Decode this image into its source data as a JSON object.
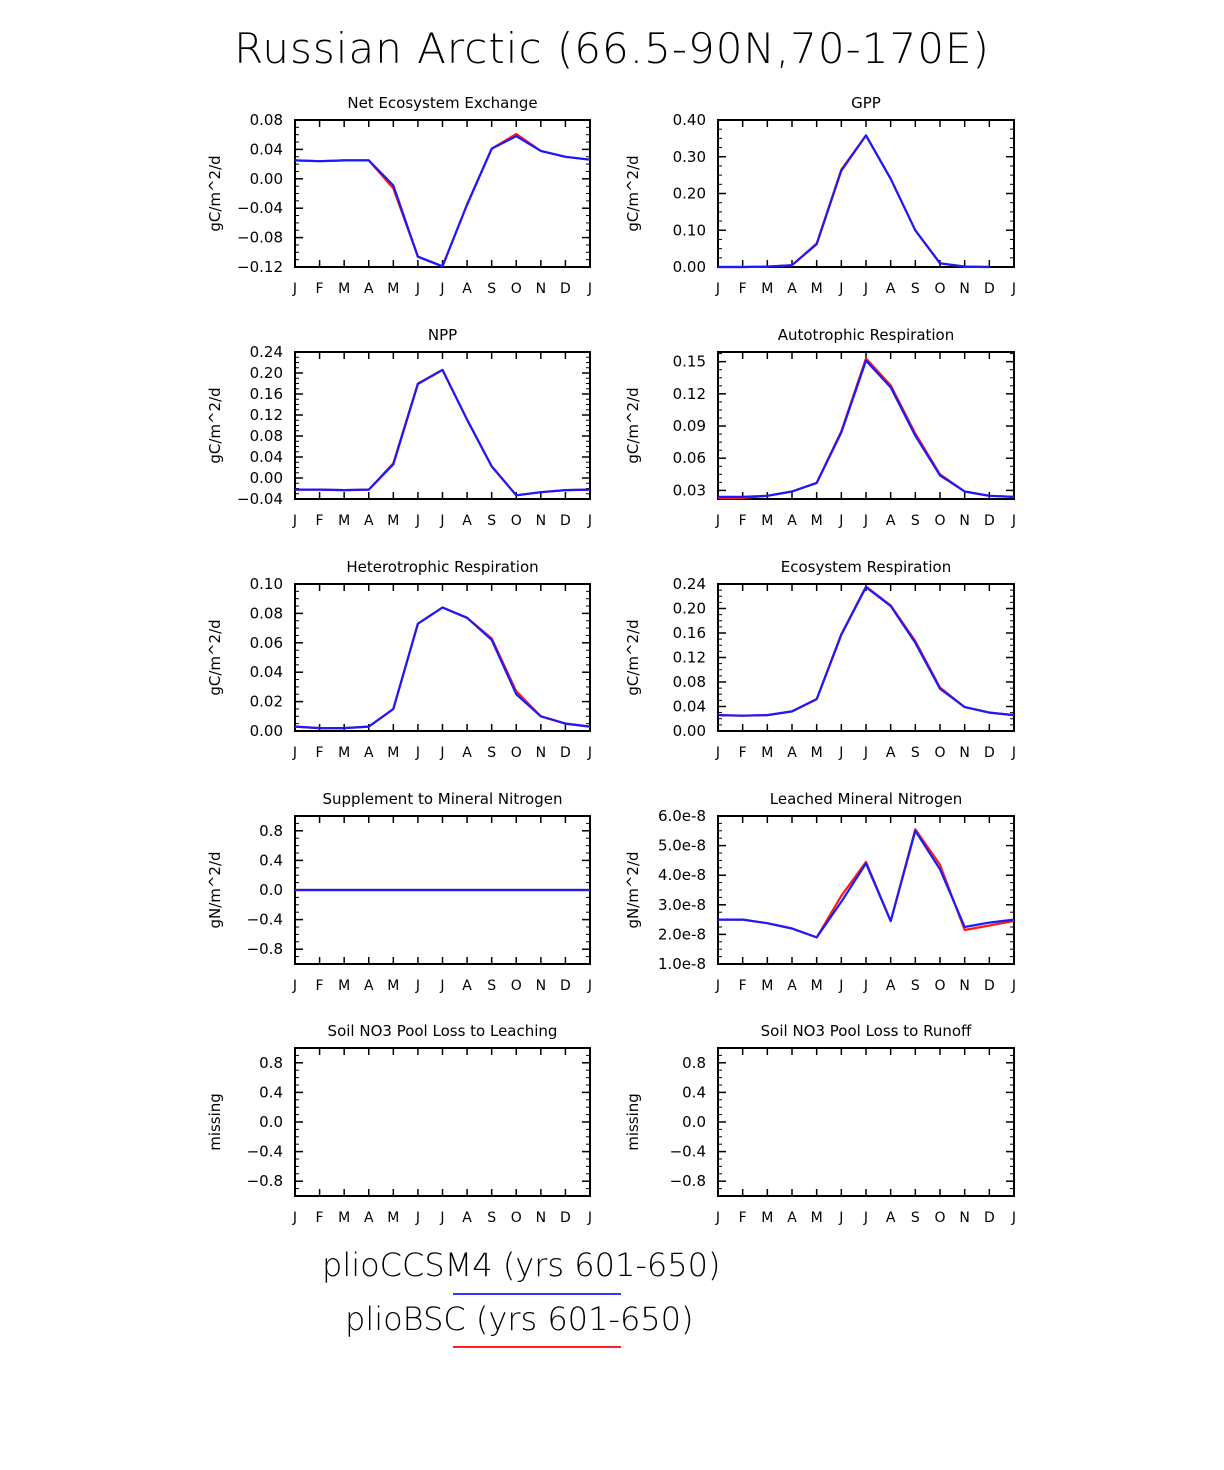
{
  "page": {
    "title": "Russian Arctic (66.5-90N,70-170E)"
  },
  "legend": [
    {
      "label": "plioCCSM4 (yrs 601-650)",
      "color": "#3333ff"
    },
    {
      "label": "plioBSC (yrs 601-650)",
      "color": "#ff2020"
    }
  ],
  "colors": {
    "plioCCSM4": "#1a1aff",
    "plioBSC": "#ff1a1a"
  },
  "chart_data": [
    {
      "type": "line",
      "title": "Net Ecosystem Exchange",
      "ylabel": "gC/m^2/d",
      "x": [
        "J",
        "F",
        "M",
        "A",
        "M",
        "J",
        "J",
        "A",
        "S",
        "O",
        "N",
        "D",
        "J"
      ],
      "ylim": [
        -0.12,
        0.08
      ],
      "yticks": [
        "0.08",
        "0.04",
        "0.00",
        "-0.04",
        "-0.08",
        "-0.12"
      ],
      "ytick_values": [
        0.08,
        0.04,
        0.0,
        -0.04,
        -0.08,
        -0.12
      ],
      "series": [
        {
          "name": "plioBSC",
          "values": [
            0.025,
            0.024,
            0.025,
            0.025,
            -0.013,
            -0.106,
            -0.119,
            -0.035,
            0.041,
            0.061,
            0.038,
            0.03,
            0.026
          ]
        },
        {
          "name": "plioCCSM4",
          "values": [
            0.025,
            0.024,
            0.025,
            0.025,
            -0.009,
            -0.106,
            -0.119,
            -0.035,
            0.041,
            0.058,
            0.038,
            0.03,
            0.026
          ]
        }
      ]
    },
    {
      "type": "line",
      "title": "GPP",
      "ylabel": "gC/m^2/d",
      "x": [
        "J",
        "F",
        "M",
        "A",
        "M",
        "J",
        "J",
        "A",
        "S",
        "O",
        "N",
        "D",
        "J"
      ],
      "ylim": [
        0.0,
        0.4
      ],
      "yticks": [
        "0.40",
        "0.30",
        "0.20",
        "0.10",
        "0.00"
      ],
      "ytick_values": [
        0.4,
        0.3,
        0.2,
        0.1,
        0.0
      ],
      "series": [
        {
          "name": "plioBSC",
          "values": [
            0.0,
            0.0,
            0.001,
            0.005,
            0.064,
            0.265,
            0.358,
            0.24,
            0.1,
            0.01,
            0.001,
            0.0,
            null
          ]
        },
        {
          "name": "plioCCSM4",
          "values": [
            0.0,
            0.0,
            0.001,
            0.005,
            0.062,
            0.262,
            0.358,
            0.24,
            0.1,
            0.01,
            0.001,
            0.0,
            null
          ]
        }
      ]
    },
    {
      "type": "line",
      "title": "NPP",
      "ylabel": "gC/m^2/d",
      "x": [
        "J",
        "F",
        "M",
        "A",
        "M",
        "J",
        "J",
        "A",
        "S",
        "O",
        "N",
        "D",
        "J"
      ],
      "ylim": [
        -0.04,
        0.24
      ],
      "yticks": [
        "0.24",
        "0.20",
        "0.16",
        "0.12",
        "0.08",
        "0.04",
        "0.00",
        "-0.04"
      ],
      "ytick_values": [
        0.24,
        0.2,
        0.16,
        0.12,
        0.08,
        0.04,
        0.0,
        -0.04
      ],
      "series": [
        {
          "name": "plioBSC",
          "values": [
            -0.022,
            -0.022,
            -0.023,
            -0.022,
            0.028,
            0.18,
            0.206,
            0.111,
            0.022,
            -0.033,
            -0.027,
            -0.023,
            -0.022
          ]
        },
        {
          "name": "plioCCSM4",
          "values": [
            -0.022,
            -0.022,
            -0.023,
            -0.022,
            0.026,
            0.179,
            0.206,
            0.111,
            0.022,
            -0.033,
            -0.027,
            -0.023,
            -0.022
          ]
        }
      ]
    },
    {
      "type": "line",
      "title": "Autotrophic Respiration",
      "ylabel": "gC/m^2/d",
      "x": [
        "J",
        "F",
        "M",
        "A",
        "M",
        "J",
        "J",
        "A",
        "S",
        "O",
        "N",
        "D",
        "J"
      ],
      "ylim": [
        0.022,
        0.159
      ],
      "yticks": [
        "0.15",
        "0.12",
        "0.09",
        "0.06",
        "0.03"
      ],
      "ytick_values": [
        0.15,
        0.12,
        0.09,
        0.06,
        0.03
      ],
      "series": [
        {
          "name": "plioBSC",
          "values": [
            0.023,
            0.023,
            0.025,
            0.029,
            0.037,
            0.085,
            0.153,
            0.128,
            0.083,
            0.045,
            0.029,
            0.025,
            0.024
          ]
        },
        {
          "name": "plioCCSM4",
          "values": [
            0.024,
            0.024,
            0.025,
            0.029,
            0.037,
            0.084,
            0.151,
            0.126,
            0.081,
            0.044,
            0.029,
            0.025,
            0.024
          ]
        }
      ]
    },
    {
      "type": "line",
      "title": "Heterotrophic Respiration",
      "ylabel": "gC/m^2/d",
      "x": [
        "J",
        "F",
        "M",
        "A",
        "M",
        "J",
        "J",
        "A",
        "S",
        "O",
        "N",
        "D",
        "J"
      ],
      "ylim": [
        0.0,
        0.1
      ],
      "yticks": [
        "0.10",
        "0.08",
        "0.06",
        "0.04",
        "0.02",
        "0.00"
      ],
      "ytick_values": [
        0.1,
        0.08,
        0.06,
        0.04,
        0.02,
        0.0
      ],
      "series": [
        {
          "name": "plioBSC",
          "values": [
            0.003,
            0.002,
            0.002,
            0.003,
            0.015,
            0.073,
            0.084,
            0.077,
            0.063,
            0.027,
            0.01,
            0.005,
            0.003
          ]
        },
        {
          "name": "plioCCSM4",
          "values": [
            0.003,
            0.002,
            0.002,
            0.003,
            0.015,
            0.073,
            0.084,
            0.077,
            0.062,
            0.025,
            0.01,
            0.005,
            0.003
          ]
        }
      ]
    },
    {
      "type": "line",
      "title": "Ecosystem Respiration",
      "ylabel": "gC/m^2/d",
      "x": [
        "J",
        "F",
        "M",
        "A",
        "M",
        "J",
        "J",
        "A",
        "S",
        "O",
        "N",
        "D",
        "J"
      ],
      "ylim": [
        0.0,
        0.24
      ],
      "yticks": [
        "0.24",
        "0.20",
        "0.16",
        "0.12",
        "0.08",
        "0.04",
        "0.00"
      ],
      "ytick_values": [
        0.24,
        0.2,
        0.16,
        0.12,
        0.08,
        0.04,
        0.0
      ],
      "series": [
        {
          "name": "plioBSC",
          "values": [
            0.026,
            0.025,
            0.026,
            0.032,
            0.052,
            0.158,
            0.236,
            0.205,
            0.147,
            0.071,
            0.039,
            0.03,
            0.026
          ]
        },
        {
          "name": "plioCCSM4",
          "values": [
            0.026,
            0.025,
            0.026,
            0.032,
            0.052,
            0.157,
            0.235,
            0.204,
            0.144,
            0.069,
            0.039,
            0.03,
            0.026
          ]
        }
      ]
    },
    {
      "type": "line",
      "title": "Supplement to Mineral Nitrogen",
      "ylabel": "gN/m^2/d",
      "x": [
        "J",
        "F",
        "M",
        "A",
        "M",
        "J",
        "J",
        "A",
        "S",
        "O",
        "N",
        "D",
        "J"
      ],
      "ylim": [
        -1.0,
        1.0
      ],
      "yticks": [
        "0.8",
        "0.4",
        "0.0",
        "-0.4",
        "-0.8"
      ],
      "ytick_values": [
        0.8,
        0.4,
        0.0,
        -0.4,
        -0.8
      ],
      "series": [
        {
          "name": "plioBSC",
          "values": [
            0,
            0,
            0,
            0,
            0,
            0,
            0,
            0,
            0,
            0,
            0,
            0,
            0
          ]
        },
        {
          "name": "plioCCSM4",
          "values": [
            0,
            0,
            0,
            0,
            0,
            0,
            0,
            0,
            0,
            0,
            0,
            0,
            0
          ]
        }
      ]
    },
    {
      "type": "line",
      "title": "Leached Mineral Nitrogen",
      "ylabel": "gN/m^2/d",
      "x": [
        "J",
        "F",
        "M",
        "A",
        "M",
        "J",
        "J",
        "A",
        "S",
        "O",
        "N",
        "D",
        "J"
      ],
      "ylim": [
        1e-08,
        6e-08
      ],
      "yticks": [
        "6.0e-8",
        "5.0e-8",
        "4.0e-8",
        "3.0e-8",
        "2.0e-8",
        "1.0e-8"
      ],
      "ytick_values": [
        6e-08,
        5e-08,
        4e-08,
        3e-08,
        2e-08,
        1e-08
      ],
      "series": [
        {
          "name": "plioBSC",
          "values": [
            2.5e-08,
            2.5e-08,
            2.38e-08,
            2.2e-08,
            1.9e-08,
            3.3e-08,
            4.45e-08,
            2.45e-08,
            5.55e-08,
            4.35e-08,
            2.15e-08,
            2.3e-08,
            2.45e-08
          ]
        },
        {
          "name": "plioCCSM4",
          "values": [
            2.5e-08,
            2.5e-08,
            2.38e-08,
            2.2e-08,
            1.9e-08,
            3.1e-08,
            4.4e-08,
            2.45e-08,
            5.5e-08,
            4.2e-08,
            2.25e-08,
            2.4e-08,
            2.5e-08
          ]
        }
      ]
    },
    {
      "type": "line",
      "title": "Soil NO3 Pool Loss to Leaching",
      "ylabel": "missing",
      "x": [
        "J",
        "F",
        "M",
        "A",
        "M",
        "J",
        "J",
        "A",
        "S",
        "O",
        "N",
        "D",
        "J"
      ],
      "ylim": [
        -1.0,
        1.0
      ],
      "yticks": [
        "0.8",
        "0.4",
        "0.0",
        "-0.4",
        "-0.8"
      ],
      "ytick_values": [
        0.8,
        0.4,
        0.0,
        -0.4,
        -0.8
      ],
      "series": []
    },
    {
      "type": "line",
      "title": "Soil NO3 Pool Loss to Runoff",
      "ylabel": "missing",
      "x": [
        "J",
        "F",
        "M",
        "A",
        "M",
        "J",
        "J",
        "A",
        "S",
        "O",
        "N",
        "D",
        "J"
      ],
      "ylim": [
        -1.0,
        1.0
      ],
      "yticks": [
        "0.8",
        "0.4",
        "0.0",
        "-0.4",
        "-0.8"
      ],
      "ytick_values": [
        0.8,
        0.4,
        0.0,
        -0.4,
        -0.8
      ],
      "series": []
    }
  ]
}
